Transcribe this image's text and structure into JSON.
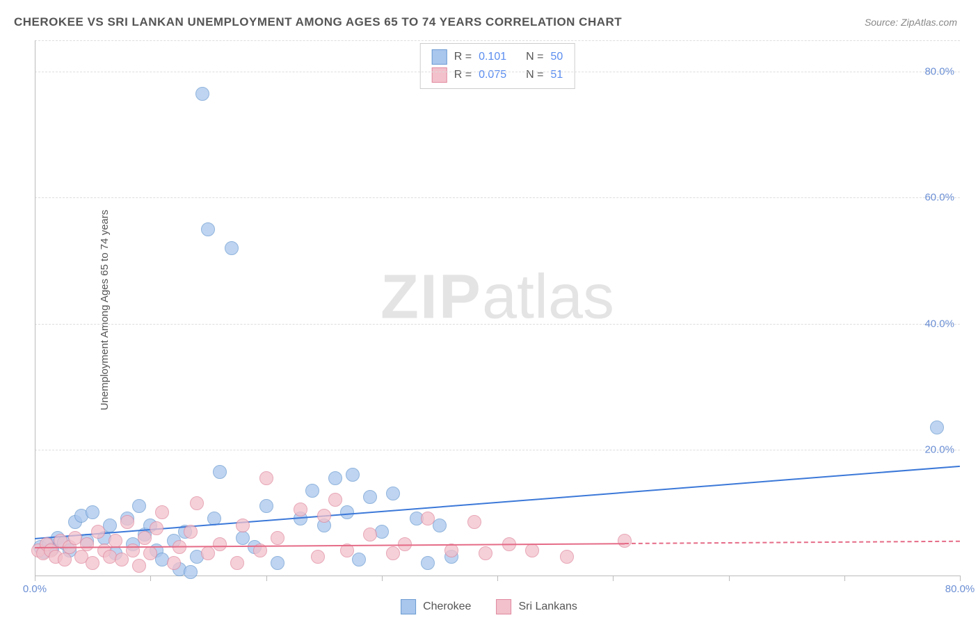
{
  "title": "CHEROKEE VS SRI LANKAN UNEMPLOYMENT AMONG AGES 65 TO 74 YEARS CORRELATION CHART",
  "source": "Source: ZipAtlas.com",
  "watermark_big": "ZIP",
  "watermark_small": "atlas",
  "y_axis_label": "Unemployment Among Ages 65 to 74 years",
  "chart": {
    "type": "scatter",
    "background_color": "#ffffff",
    "grid_color": "#dddddd",
    "axis_color": "#bbbbbb",
    "tick_label_color": "#6b8fd4",
    "axis_label_color": "#555555",
    "xlim": [
      0,
      80
    ],
    "ylim": [
      0,
      85
    ],
    "y_ticks": [
      20,
      40,
      60,
      80
    ],
    "y_tick_labels": [
      "20.0%",
      "40.0%",
      "60.0%",
      "80.0%"
    ],
    "x_ticks": [
      0,
      10,
      20,
      30,
      40,
      50,
      60,
      70,
      80
    ],
    "x_tick_labels_shown": {
      "0": "0.0%",
      "80": "80.0%"
    },
    "x_grid_top": true,
    "series": [
      {
        "name": "Cherokee",
        "marker_color": "#a9c6ed",
        "marker_border": "#6b9bd1",
        "marker_opacity": 0.75,
        "marker_radius": 10,
        "trend_color": "#3b78d8",
        "trend_width": 2,
        "trend": {
          "x1": 0,
          "y1": 6.0,
          "x2": 80,
          "y2": 17.5,
          "solid_until_x": 80
        },
        "r_value": "0.101",
        "n_value": "50",
        "points": [
          [
            0.5,
            4.5
          ],
          [
            0.8,
            3.8
          ],
          [
            1.2,
            5.0
          ],
          [
            1.5,
            4.2
          ],
          [
            2.0,
            6.0
          ],
          [
            2.5,
            5.2
          ],
          [
            3.0,
            4.0
          ],
          [
            3.5,
            8.5
          ],
          [
            4.0,
            9.5
          ],
          [
            4.5,
            5.5
          ],
          [
            5.0,
            10.0
          ],
          [
            6.0,
            6.0
          ],
          [
            6.5,
            8.0
          ],
          [
            7.0,
            3.5
          ],
          [
            8.0,
            9.0
          ],
          [
            8.5,
            5.0
          ],
          [
            9.0,
            11.0
          ],
          [
            9.5,
            6.5
          ],
          [
            10.0,
            8.0
          ],
          [
            10.5,
            4.0
          ],
          [
            11.0,
            2.5
          ],
          [
            12.0,
            5.5
          ],
          [
            12.5,
            1.0
          ],
          [
            13.0,
            7.0
          ],
          [
            13.5,
            0.5
          ],
          [
            14.0,
            3.0
          ],
          [
            14.5,
            76.5
          ],
          [
            15.0,
            55.0
          ],
          [
            15.5,
            9.0
          ],
          [
            16.0,
            16.5
          ],
          [
            17.0,
            52.0
          ],
          [
            18.0,
            6.0
          ],
          [
            19.0,
            4.5
          ],
          [
            20.0,
            11.0
          ],
          [
            21.0,
            2.0
          ],
          [
            23.0,
            9.0
          ],
          [
            24.0,
            13.5
          ],
          [
            25.0,
            8.0
          ],
          [
            26.0,
            15.5
          ],
          [
            27.0,
            10.0
          ],
          [
            27.5,
            16.0
          ],
          [
            28.0,
            2.5
          ],
          [
            29.0,
            12.5
          ],
          [
            30.0,
            7.0
          ],
          [
            31.0,
            13.0
          ],
          [
            33.0,
            9.0
          ],
          [
            34.0,
            2.0
          ],
          [
            35.0,
            8.0
          ],
          [
            36.0,
            3.0
          ],
          [
            78.0,
            23.5
          ]
        ]
      },
      {
        "name": "Sri Lankans",
        "marker_color": "#f2c1cb",
        "marker_border": "#e08aa0",
        "marker_opacity": 0.75,
        "marker_radius": 10,
        "trend_color": "#e56b87",
        "trend_width": 2,
        "trend": {
          "x1": 0,
          "y1": 4.5,
          "x2": 80,
          "y2": 5.5,
          "solid_until_x": 51
        },
        "r_value": "0.075",
        "n_value": "51",
        "points": [
          [
            0.3,
            4.0
          ],
          [
            0.7,
            3.5
          ],
          [
            1.0,
            5.0
          ],
          [
            1.4,
            4.0
          ],
          [
            1.8,
            3.0
          ],
          [
            2.2,
            5.5
          ],
          [
            2.6,
            2.5
          ],
          [
            3.0,
            4.5
          ],
          [
            3.5,
            6.0
          ],
          [
            4.0,
            3.0
          ],
          [
            4.5,
            5.0
          ],
          [
            5.0,
            2.0
          ],
          [
            5.5,
            7.0
          ],
          [
            6.0,
            4.0
          ],
          [
            6.5,
            3.0
          ],
          [
            7.0,
            5.5
          ],
          [
            7.5,
            2.5
          ],
          [
            8.0,
            8.5
          ],
          [
            8.5,
            4.0
          ],
          [
            9.0,
            1.5
          ],
          [
            9.5,
            6.0
          ],
          [
            10.0,
            3.5
          ],
          [
            10.5,
            7.5
          ],
          [
            11.0,
            10.0
          ],
          [
            12.0,
            2.0
          ],
          [
            12.5,
            4.5
          ],
          [
            13.5,
            7.0
          ],
          [
            14.0,
            11.5
          ],
          [
            15.0,
            3.5
          ],
          [
            16.0,
            5.0
          ],
          [
            17.5,
            2.0
          ],
          [
            18.0,
            8.0
          ],
          [
            19.5,
            4.0
          ],
          [
            20.0,
            15.5
          ],
          [
            21.0,
            6.0
          ],
          [
            23.0,
            10.5
          ],
          [
            24.5,
            3.0
          ],
          [
            25.0,
            9.5
          ],
          [
            26.0,
            12.0
          ],
          [
            27.0,
            4.0
          ],
          [
            29.0,
            6.5
          ],
          [
            31.0,
            3.5
          ],
          [
            32.0,
            5.0
          ],
          [
            34.0,
            9.0
          ],
          [
            36.0,
            4.0
          ],
          [
            38.0,
            8.5
          ],
          [
            39.0,
            3.5
          ],
          [
            41.0,
            5.0
          ],
          [
            43.0,
            4.0
          ],
          [
            46.0,
            3.0
          ],
          [
            51.0,
            5.5
          ]
        ]
      }
    ]
  },
  "legend_top": {
    "r_label": "R  =",
    "n_label": "N  ="
  },
  "legend_bottom_labels": [
    "Cherokee",
    "Sri Lankans"
  ]
}
